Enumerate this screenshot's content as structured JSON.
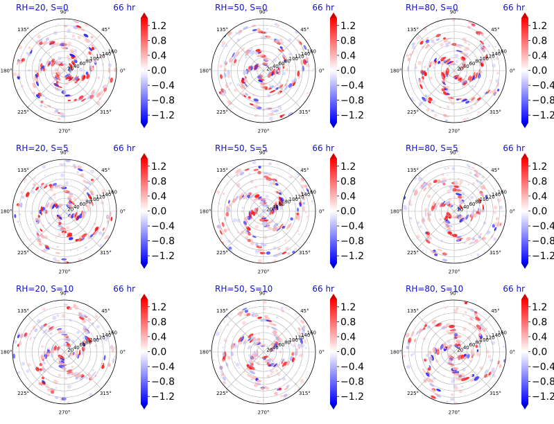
{
  "chart_data": {
    "type": "heatmap",
    "projection": "polar",
    "colormap": "bwr",
    "color_min": "#0000ff",
    "color_mid": "#ffffff",
    "color_max": "#ff0000",
    "clim": [
      -1.4,
      1.4
    ],
    "colorbar_extend": "both",
    "colorbar_ticks": [
      1.2,
      0.8,
      0.4,
      0.0,
      -0.4,
      -0.8,
      -1.2
    ],
    "colorbar_tick_labels": [
      "1.2",
      "0.8",
      "0.4",
      "0.0",
      "−0.4",
      "−0.8",
      "−1.2"
    ],
    "angle_labels": [
      "0°",
      "45°",
      "90°",
      "135°",
      "180°",
      "225°",
      "270°",
      "315°"
    ],
    "radial_ticks": [
      20,
      40,
      60,
      80,
      100,
      120,
      140,
      160
    ],
    "radial_tick_labels": [
      "20",
      "40",
      "60",
      "80",
      "100",
      "120",
      "140",
      "160"
    ],
    "rmax": 160,
    "grid": true,
    "time_label": "66 hr",
    "rows": [
      "S=0",
      "S=5",
      "S=10"
    ],
    "cols": [
      "RH=20",
      "RH=50",
      "RH=80"
    ],
    "panels": [
      {
        "title": "RH=20, S=0",
        "rh": 20,
        "s": 0,
        "time": "66 hr"
      },
      {
        "title": "RH=50, S=0",
        "rh": 50,
        "s": 0,
        "time": "66 hr"
      },
      {
        "title": "RH=80, S=0",
        "rh": 80,
        "s": 0,
        "time": "66 hr"
      },
      {
        "title": "RH=20, S=5",
        "rh": 20,
        "s": 5,
        "time": "66 hr"
      },
      {
        "title": "RH=50, S=5",
        "rh": 50,
        "s": 5,
        "time": "66 hr"
      },
      {
        "title": "RH=80, S=5",
        "rh": 80,
        "s": 5,
        "time": "66 hr"
      },
      {
        "title": "RH=20, S=10",
        "rh": 20,
        "s": 10,
        "time": "66 hr"
      },
      {
        "title": "RH=50, S=10",
        "rh": 50,
        "s": 10,
        "time": "66 hr"
      },
      {
        "title": "RH=80, S=10",
        "rh": 80,
        "s": 10,
        "time": "66 hr"
      }
    ]
  }
}
